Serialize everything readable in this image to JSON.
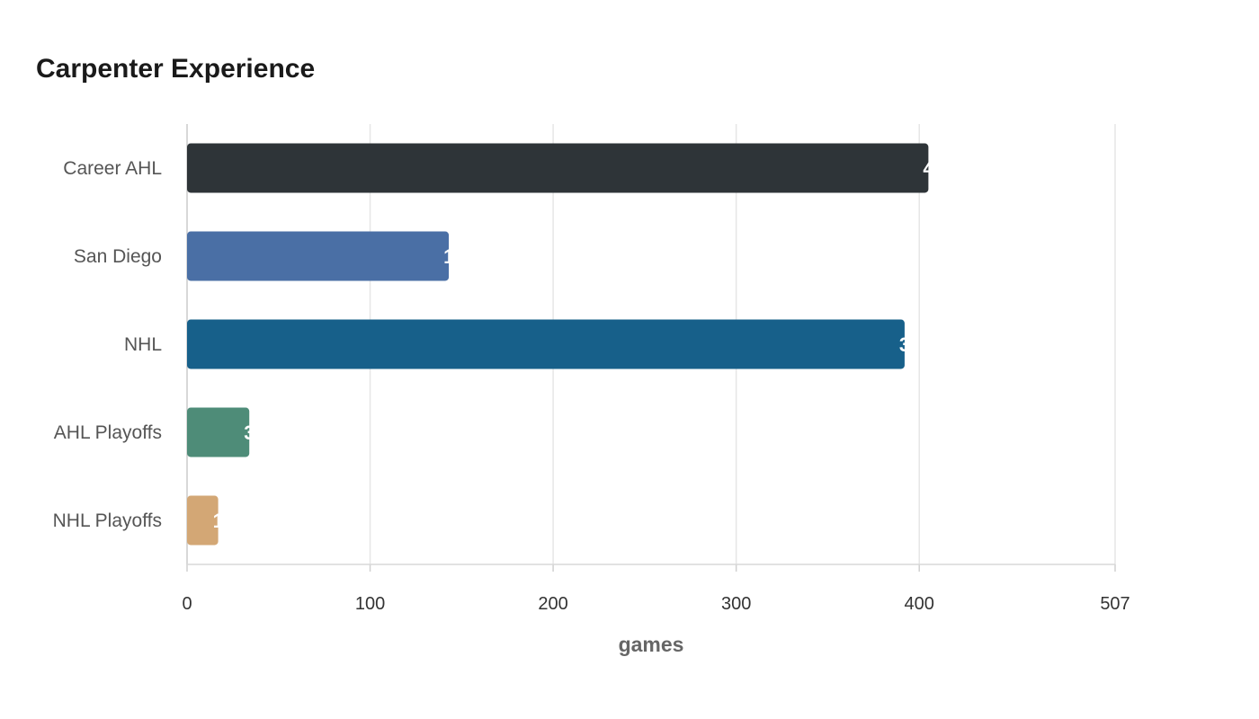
{
  "chart_data": {
    "type": "bar",
    "orientation": "horizontal",
    "title": "Carpenter Experience",
    "xlabel": "games",
    "ylabel": "",
    "categories": [
      "Career AHL",
      "San Diego",
      "NHL",
      "AHL Playoffs",
      "NHL Playoffs"
    ],
    "values": [
      405,
      143,
      392,
      34,
      17
    ],
    "colors": [
      "#2e3438",
      "#4a6fa5",
      "#17608a",
      "#4e8c78",
      "#d3a775"
    ],
    "xlim": [
      0,
      507
    ],
    "xticks": [
      0,
      100,
      200,
      300,
      400,
      507
    ],
    "grid": true,
    "legend": "none"
  }
}
